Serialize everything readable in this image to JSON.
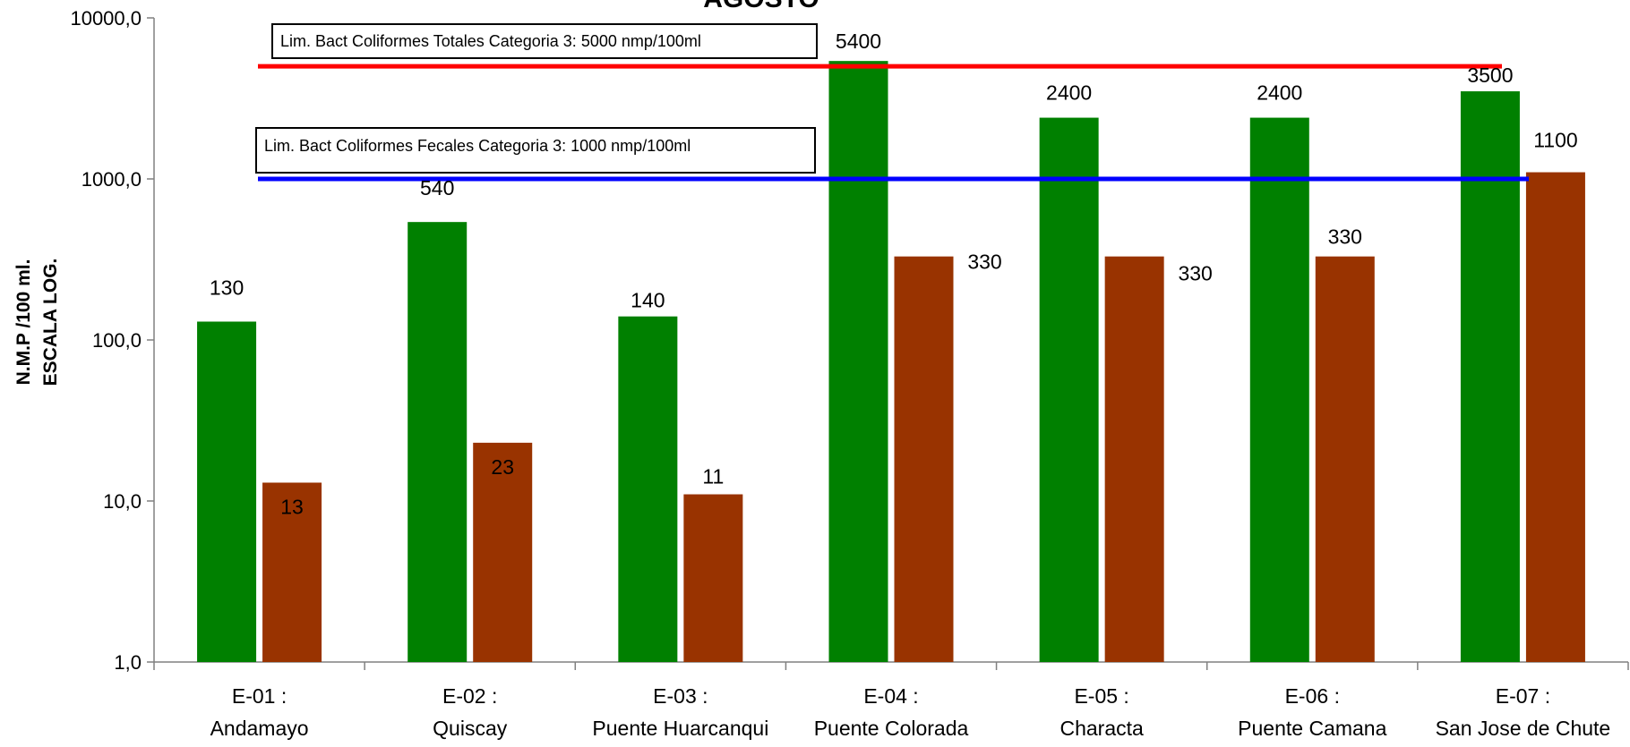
{
  "chart_data": {
    "type": "bar",
    "title": "AGOSTO",
    "ylabel_lines": [
      "N.M.P /100 ml.",
      "ESCALA LOG."
    ],
    "yscale": "log",
    "ylim": [
      1,
      10000
    ],
    "yticks": [
      {
        "value": 1,
        "label": "1,0"
      },
      {
        "value": 10,
        "label": "10,0"
      },
      {
        "value": 100,
        "label": "100,0"
      },
      {
        "value": 1000,
        "label": "1000,0"
      },
      {
        "value": 10000,
        "label": "10000,0"
      }
    ],
    "categories": [
      {
        "code": "E-01 :",
        "name": "Andamayo"
      },
      {
        "code": "E-02 :",
        "name": "Quiscay"
      },
      {
        "code": "E-03 :",
        "name": "Puente Huarcanqui"
      },
      {
        "code": "E-04 :",
        "name": "Puente Colorada"
      },
      {
        "code": "E-05 :",
        "name": "Characta"
      },
      {
        "code": "E-06 :",
        "name": "Puente Camana"
      },
      {
        "code": "E-07 :",
        "name": "San Jose de Chute"
      }
    ],
    "series": [
      {
        "color": "#008000",
        "values": [
          130,
          540,
          140,
          5400,
          2400,
          2400,
          3500
        ],
        "labels": [
          "130",
          "540",
          "140",
          "5400",
          "2400",
          "2400",
          "3500"
        ]
      },
      {
        "color": "#993300",
        "values": [
          13,
          23,
          11,
          330,
          330,
          330,
          1100
        ],
        "labels": [
          "13",
          "23",
          "11",
          "330",
          "330",
          "330",
          "1100"
        ]
      }
    ],
    "reference_lines": [
      {
        "value": 5000,
        "color": "#ff0000",
        "label": "Lim. Bact Coliformes Totales Categoria 3: 5000  nmp/100ml"
      },
      {
        "value": 1000,
        "color": "#0000ff",
        "label": "Lim. Bact Coliformes Fecales Categoria 3: 1000  nmp/100ml"
      }
    ],
    "grid": false,
    "legend": "none"
  }
}
